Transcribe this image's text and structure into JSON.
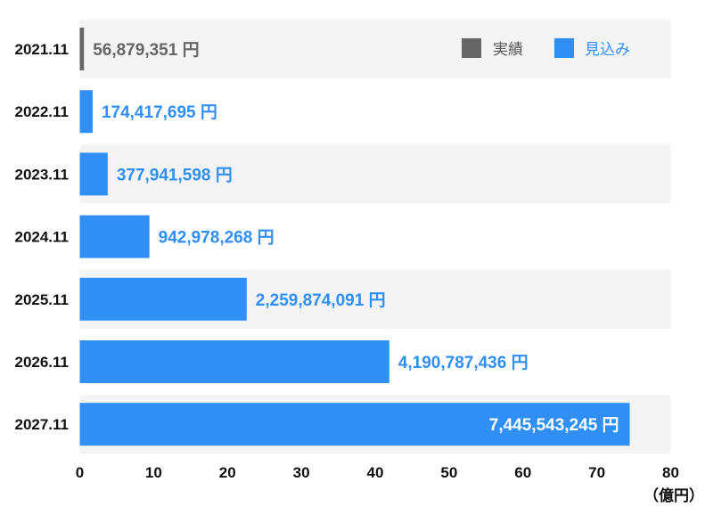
{
  "chart_data": {
    "type": "bar",
    "orientation": "horizontal",
    "categories": [
      "2021.11",
      "2022.11",
      "2023.11",
      "2024.11",
      "2025.11",
      "2026.11",
      "2027.11"
    ],
    "values": [
      56879351,
      174417695,
      377941598,
      942978268,
      2259874091,
      4190787436,
      7445543245
    ],
    "value_labels": [
      "56,879,351 円",
      "174,417,695 円",
      "377,941,598 円",
      "942,978,268 円",
      "2,259,874,091 円",
      "4,190,787,436 円",
      "7,445,543,245 円"
    ],
    "bar_kind": [
      "actual",
      "forecast",
      "forecast",
      "forecast",
      "forecast",
      "forecast",
      "forecast"
    ],
    "xlim": [
      0,
      80
    ],
    "x_ticks": [
      0,
      10,
      20,
      30,
      40,
      50,
      60,
      70,
      80
    ],
    "x_unit_divisor": 100000000,
    "x_unit_label": "（億円）",
    "legend": {
      "position": "top-right",
      "items": [
        {
          "label": "実績",
          "kind": "actual"
        },
        {
          "label": "見込み",
          "kind": "forecast"
        }
      ]
    },
    "grid": false,
    "row_striping": true,
    "colors": {
      "actual": "#666666",
      "forecast": "#2f8ff5",
      "row_band": "#f4f4f4",
      "label_inside": "#ffffff"
    }
  }
}
